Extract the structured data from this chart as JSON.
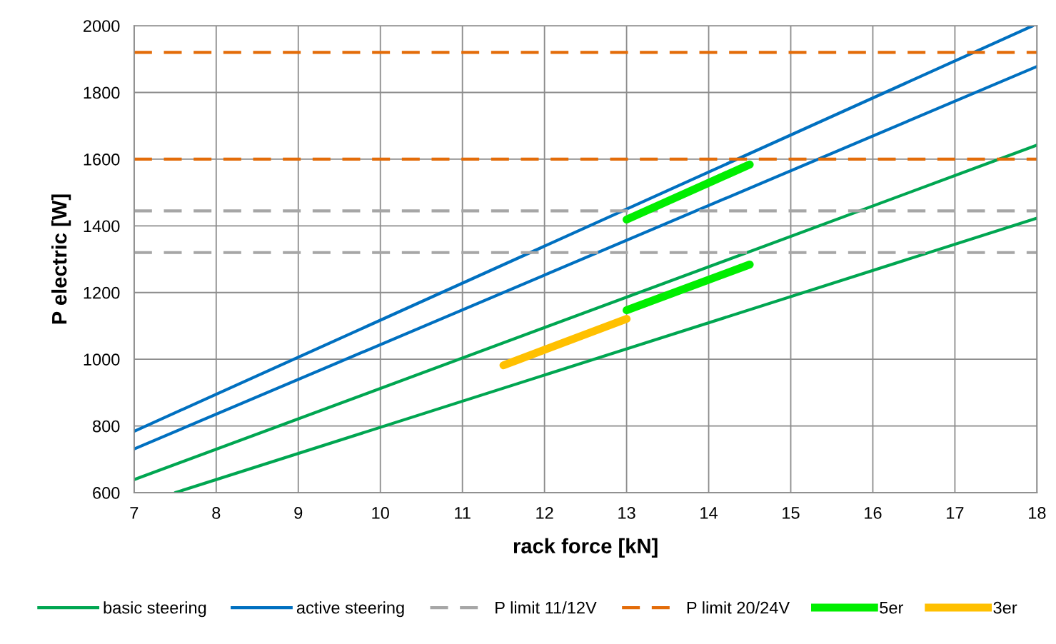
{
  "chart_data": {
    "type": "line",
    "xlabel": "rack force [kN]",
    "ylabel": "P electric [W]",
    "xlim": [
      7,
      18
    ],
    "ylim": [
      600,
      2000
    ],
    "xticks": [
      7,
      8,
      9,
      10,
      11,
      12,
      13,
      14,
      15,
      16,
      17,
      18
    ],
    "yticks": [
      600,
      800,
      1000,
      1200,
      1400,
      1600,
      1800,
      2000
    ],
    "grid": true,
    "legend": "bottom",
    "marker": "none",
    "series": [
      {
        "name": "basic steering",
        "color": "#00a651",
        "line_style": "solid",
        "x": [
          7,
          18
        ],
        "values": [
          639,
          1642
        ]
      },
      {
        "color": "#00a651",
        "line_style": "solid",
        "x": [
          7.5,
          18
        ],
        "values": [
          600,
          1423
        ]
      },
      {
        "name": "active steering",
        "color": "#0070c0",
        "line_style": "solid",
        "x": [
          7,
          17.95
        ],
        "values": [
          784,
          2000
        ]
      },
      {
        "color": "#0070c0",
        "line_style": "solid",
        "x": [
          7,
          18
        ],
        "values": [
          731,
          1878
        ]
      },
      {
        "name": "P limit 11/12V",
        "color": "#a6a6a6",
        "line_style": "dashed",
        "x": [
          7,
          18
        ],
        "values": [
          1445,
          1445
        ]
      },
      {
        "color": "#a6a6a6",
        "line_style": "dashed",
        "x": [
          7,
          18
        ],
        "values": [
          1320,
          1320
        ]
      },
      {
        "name": "P limit 20/24V",
        "color": "#e36c09",
        "line_style": "dashed",
        "x": [
          7,
          18
        ],
        "values": [
          1920,
          1920
        ]
      },
      {
        "color": "#e36c09",
        "line_style": "dashed",
        "x": [
          7,
          18
        ],
        "values": [
          1600,
          1600
        ]
      },
      {
        "name": "5er",
        "color": "#00ee00",
        "line_style": "solid",
        "x": [
          13,
          14.5
        ],
        "values": [
          1419,
          1584
        ]
      },
      {
        "color": "#00ee00",
        "line_style": "solid",
        "x": [
          13,
          14.5
        ],
        "values": [
          1147,
          1284
        ]
      },
      {
        "name": "3er",
        "color": "#ffc000",
        "line_style": "solid",
        "x": [
          11.5,
          13
        ],
        "values": [
          982,
          1121
        ]
      }
    ]
  }
}
